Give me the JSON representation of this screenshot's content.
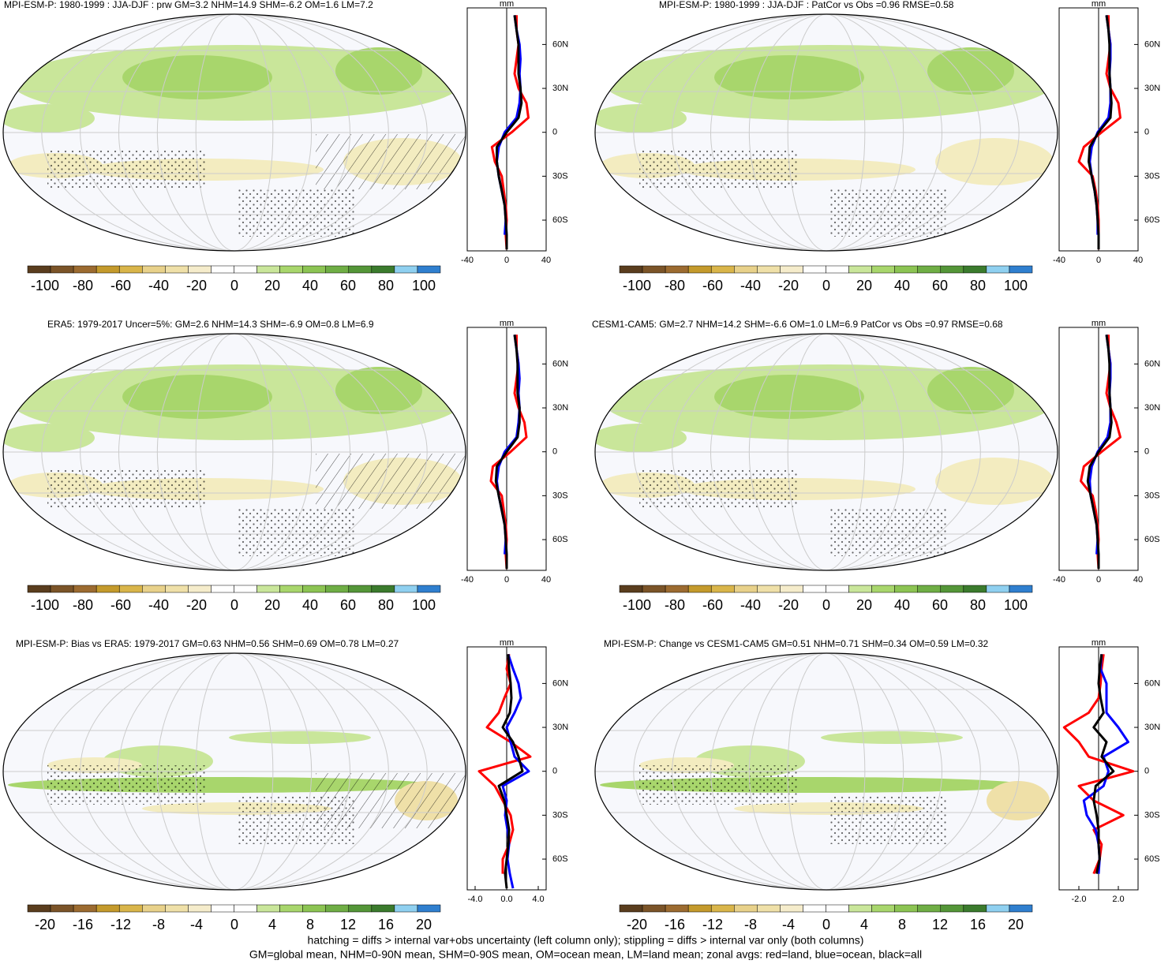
{
  "chart_data": [
    {
      "type": "line",
      "title": "MPI-ESM-P: 1980-1999 : JJA-DJF : prw GM=3.2 NHM=14.9 SHM=-6.2 OM=1.6 LM=7.2",
      "x_unit": "mm",
      "xlim": [
        -40,
        40
      ],
      "xticks": [
        -40,
        0,
        40
      ],
      "ylim": [
        -81,
        85
      ],
      "yticks": [
        {
          "value": -60,
          "label": "60S"
        },
        {
          "value": -30,
          "label": "30S"
        },
        0,
        {
          "value": 30,
          "label": "30N"
        },
        {
          "value": 60,
          "label": "60N"
        }
      ],
      "lat": [
        -80,
        -70,
        -60,
        -50,
        -40,
        -30,
        -20,
        -10,
        0,
        10,
        20,
        30,
        40,
        50,
        60,
        70,
        80
      ],
      "series": [
        {
          "name": "land",
          "color": "#ff0000",
          "values": [
            0,
            -1,
            0,
            -1,
            -3,
            -5,
            -12,
            -15,
            5,
            22,
            20,
            12,
            8,
            10,
            12,
            10,
            10
          ]
        },
        {
          "name": "ocean",
          "color": "#0000ff",
          "values": [
            null,
            -2,
            -1,
            -2,
            -5,
            -8,
            -10,
            -8,
            -2,
            10,
            13,
            14,
            13,
            14,
            13,
            10,
            8
          ]
        },
        {
          "name": "all",
          "color": "#000000",
          "values": [
            0,
            0,
            -1,
            -2,
            -5,
            -8,
            -10,
            -10,
            0,
            12,
            15,
            14,
            12,
            12,
            12,
            10,
            8
          ]
        }
      ],
      "colorbar": {
        "colors": [
          "#5a3d1e",
          "#7b5428",
          "#9c6b30",
          "#c49a2c",
          "#d9b54a",
          "#e8d18a",
          "#efe0a8",
          "#f5eccb",
          "#ffffff",
          "#ffffff",
          "#c9e69a",
          "#a8d66c",
          "#8cc453",
          "#6fae45",
          "#549638",
          "#3b7b2d",
          "#8fd0f0",
          "#2f7fcf"
        ],
        "ticks": [
          -100,
          -80,
          -60,
          -40,
          -20,
          0,
          20,
          40,
          60,
          80,
          100
        ]
      }
    },
    {
      "type": "line",
      "title": "MPI-ESM-P: 1980-1999 : JJA-DJF : PatCor vs Obs =0.96 RMSE=0.58",
      "x_unit": "mm",
      "xlim": [
        -40,
        40
      ],
      "xticks": [
        -40,
        0,
        40
      ],
      "ylim": [
        -81,
        85
      ],
      "yticks": [
        {
          "value": -60,
          "label": "60S"
        },
        {
          "value": -30,
          "label": "30S"
        },
        0,
        {
          "value": 30,
          "label": "30N"
        },
        {
          "value": 60,
          "label": "60N"
        }
      ],
      "lat": [
        -80,
        -70,
        -60,
        -50,
        -40,
        -30,
        -20,
        -10,
        0,
        10,
        20,
        30,
        40,
        50,
        60,
        70,
        80
      ],
      "series": [
        {
          "name": "land",
          "color": "#ff0000",
          "values": [
            0,
            0,
            0,
            -1,
            -3,
            -6,
            -20,
            -15,
            3,
            22,
            20,
            12,
            8,
            10,
            12,
            10,
            10
          ]
        },
        {
          "name": "ocean",
          "color": "#0000ff",
          "values": [
            null,
            -1,
            -1,
            -2,
            -4,
            -7,
            -9,
            -7,
            -1,
            10,
            12,
            12,
            11,
            12,
            12,
            10,
            8
          ]
        },
        {
          "name": "all",
          "color": "#000000",
          "values": [
            0,
            0,
            -1,
            -2,
            -4,
            -7,
            -10,
            -9,
            0,
            12,
            13,
            12,
            11,
            11,
            11,
            10,
            8
          ]
        }
      ],
      "colorbar": {
        "colors": [
          "#5a3d1e",
          "#7b5428",
          "#9c6b30",
          "#c49a2c",
          "#d9b54a",
          "#e8d18a",
          "#efe0a8",
          "#f5eccb",
          "#ffffff",
          "#ffffff",
          "#c9e69a",
          "#a8d66c",
          "#8cc453",
          "#6fae45",
          "#549638",
          "#3b7b2d",
          "#8fd0f0",
          "#2f7fcf"
        ],
        "ticks": [
          -100,
          -80,
          -60,
          -40,
          -20,
          0,
          20,
          40,
          60,
          80,
          100
        ]
      }
    },
    {
      "type": "line",
      "title": "ERA5: 1979-2017 Uncer=5%: GM=2.6 NHM=14.3 SHM=-6.9 OM=0.8 LM=6.9",
      "x_unit": "mm",
      "xlim": [
        -40,
        40
      ],
      "xticks": [
        -40,
        0,
        40
      ],
      "ylim": [
        -81,
        85
      ],
      "yticks": [
        {
          "value": -60,
          "label": "60S"
        },
        {
          "value": -30,
          "label": "30S"
        },
        0,
        {
          "value": 30,
          "label": "30N"
        },
        {
          "value": 60,
          "label": "60N"
        }
      ],
      "lat": [
        -80,
        -70,
        -60,
        -50,
        -40,
        -30,
        -20,
        -10,
        0,
        10,
        20,
        30,
        40,
        50,
        60,
        70,
        80
      ],
      "series": [
        {
          "name": "land",
          "color": "#ff0000",
          "values": [
            0,
            -1,
            0,
            -1,
            -3,
            -5,
            -16,
            -14,
            4,
            20,
            18,
            12,
            8,
            10,
            12,
            10,
            10
          ]
        },
        {
          "name": "ocean",
          "color": "#0000ff",
          "values": [
            null,
            -2,
            -1,
            -2,
            -5,
            -8,
            -10,
            -8,
            -2,
            10,
            12,
            13,
            12,
            13,
            12,
            10,
            8
          ]
        },
        {
          "name": "all",
          "color": "#000000",
          "values": [
            0,
            0,
            -1,
            -2,
            -5,
            -8,
            -11,
            -10,
            0,
            11,
            13,
            13,
            11,
            11,
            11,
            10,
            8
          ]
        }
      ],
      "colorbar": {
        "colors": [
          "#5a3d1e",
          "#7b5428",
          "#9c6b30",
          "#c49a2c",
          "#d9b54a",
          "#e8d18a",
          "#efe0a8",
          "#f5eccb",
          "#ffffff",
          "#ffffff",
          "#c9e69a",
          "#a8d66c",
          "#8cc453",
          "#6fae45",
          "#549638",
          "#3b7b2d",
          "#8fd0f0",
          "#2f7fcf"
        ],
        "ticks": [
          -100,
          -80,
          -60,
          -40,
          -20,
          0,
          20,
          40,
          60,
          80,
          100
        ]
      }
    },
    {
      "type": "line",
      "title": "CESM1-CAM5: GM=2.7 NHM=14.2 SHM=-6.6 OM=1.0 LM=6.9 PatCor vs Obs =0.97 RMSE=0.68",
      "x_unit": "mm",
      "xlim": [
        -40,
        40
      ],
      "xticks": [
        -40,
        0,
        40
      ],
      "ylim": [
        -81,
        85
      ],
      "yticks": [
        {
          "value": -60,
          "label": "60S"
        },
        {
          "value": -30,
          "label": "30S"
        },
        0,
        {
          "value": 30,
          "label": "30N"
        },
        {
          "value": 60,
          "label": "60N"
        }
      ],
      "lat": [
        -80,
        -70,
        -60,
        -50,
        -40,
        -30,
        -20,
        -10,
        0,
        10,
        20,
        30,
        40,
        50,
        60,
        70,
        80
      ],
      "series": [
        {
          "name": "land",
          "color": "#ff0000",
          "values": [
            0,
            -1,
            0,
            -1,
            -3,
            -6,
            -18,
            -15,
            3,
            22,
            18,
            12,
            8,
            10,
            12,
            10,
            10
          ]
        },
        {
          "name": "ocean",
          "color": "#0000ff",
          "values": [
            null,
            -2,
            -1,
            -2,
            -5,
            -8,
            -9,
            -7,
            -1,
            9,
            12,
            12,
            11,
            12,
            12,
            10,
            8
          ]
        },
        {
          "name": "all",
          "color": "#000000",
          "values": [
            0,
            0,
            -1,
            -2,
            -5,
            -8,
            -11,
            -9,
            0,
            11,
            13,
            12,
            11,
            11,
            11,
            10,
            8
          ]
        }
      ],
      "colorbar": {
        "colors": [
          "#5a3d1e",
          "#7b5428",
          "#9c6b30",
          "#c49a2c",
          "#d9b54a",
          "#e8d18a",
          "#efe0a8",
          "#f5eccb",
          "#ffffff",
          "#ffffff",
          "#c9e69a",
          "#a8d66c",
          "#8cc453",
          "#6fae45",
          "#549638",
          "#3b7b2d",
          "#8fd0f0",
          "#2f7fcf"
        ],
        "ticks": [
          -100,
          -80,
          -60,
          -40,
          -20,
          0,
          20,
          40,
          60,
          80,
          100
        ]
      }
    },
    {
      "type": "line",
      "title": "MPI-ESM-P: Bias vs ERA5: 1979-2017 GM=0.63 NHM=0.56 SHM=0.69 OM=0.78 LM=0.27",
      "x_unit": "mm",
      "xlim": [
        -5,
        5
      ],
      "xticks": [
        {
          "value": -4,
          "label": "-4.0"
        },
        {
          "value": 0,
          "label": "0.0"
        },
        {
          "value": 4,
          "label": "4.0"
        }
      ],
      "ylim": [
        -81,
        85
      ],
      "yticks": [
        {
          "value": -60,
          "label": "60S"
        },
        {
          "value": -30,
          "label": "30S"
        },
        0,
        {
          "value": 30,
          "label": "30N"
        },
        {
          "value": 60,
          "label": "60N"
        }
      ],
      "lat": [
        -80,
        -70,
        -60,
        -50,
        -40,
        -30,
        -20,
        -10,
        0,
        10,
        20,
        30,
        40,
        50,
        60,
        70,
        80
      ],
      "series": [
        {
          "name": "land",
          "color": "#ff0000",
          "values": [
            null,
            -0.5,
            -0.5,
            0.3,
            0.8,
            0.5,
            -0.5,
            -1.5,
            -3.5,
            3,
            0.5,
            -2.5,
            -1,
            -0.3,
            0.5,
            0,
            0.3
          ]
        },
        {
          "name": "ocean",
          "color": "#0000ff",
          "values": [
            0.8,
            0.4,
            0.1,
            0.3,
            0.1,
            -0.2,
            0,
            -0.5,
            2.8,
            1,
            0.5,
            0,
            1,
            1.8,
            1.5,
            0.8,
            0.2
          ]
        },
        {
          "name": "all",
          "color": "#000000",
          "values": [
            0,
            -0.2,
            0,
            0.2,
            0.3,
            0,
            -0.3,
            -1,
            2,
            1.5,
            0.8,
            -0.5,
            0.4,
            0.6,
            0.5,
            0.3,
            0.2
          ]
        }
      ],
      "colorbar": {
        "colors": [
          "#5a3d1e",
          "#7b5428",
          "#9c6b30",
          "#c49a2c",
          "#d9b54a",
          "#e8d18a",
          "#efe0a8",
          "#f5eccb",
          "#ffffff",
          "#ffffff",
          "#c9e69a",
          "#a8d66c",
          "#8cc453",
          "#6fae45",
          "#549638",
          "#3b7b2d",
          "#8fd0f0",
          "#2f7fcf"
        ],
        "ticks": [
          -20,
          -16,
          -12,
          -8,
          -4,
          0,
          4,
          8,
          12,
          16,
          20
        ]
      }
    },
    {
      "type": "line",
      "title": "MPI-ESM-P: Change vs CESM1-CAM5 GM=0.51 NHM=0.71 SHM=0.34 OM=0.59 LM=0.32",
      "x_unit": "mm",
      "xlim": [
        -4,
        4
      ],
      "xticks": [
        {
          "value": -2,
          "label": "-2.0"
        },
        {
          "value": 2,
          "label": "2.0"
        }
      ],
      "ylim": [
        -81,
        85
      ],
      "yticks": [
        {
          "value": -60,
          "label": "60S"
        },
        {
          "value": -30,
          "label": "30S"
        },
        0,
        {
          "value": 30,
          "label": "30N"
        },
        {
          "value": 60,
          "label": "60N"
        }
      ],
      "lat": [
        -80,
        -70,
        -60,
        -50,
        -40,
        -30,
        -20,
        -10,
        0,
        10,
        20,
        30,
        40,
        50,
        60,
        70,
        80
      ],
      "series": [
        {
          "name": "land",
          "color": "#ff0000",
          "values": [
            null,
            -0.5,
            0.1,
            0.3,
            -0.5,
            2.5,
            -0.5,
            -2,
            3.5,
            -1,
            -2,
            -3.5,
            -1,
            0,
            0.2,
            0.3,
            0.5
          ]
        },
        {
          "name": "ocean",
          "color": "#0000ff",
          "values": [
            null,
            0,
            0.1,
            0,
            -0.3,
            -1.2,
            -1.5,
            0.5,
            1,
            0.5,
            3,
            2,
            0.8,
            0.8,
            0.8,
            0.2,
            0.3
          ]
        },
        {
          "name": "all",
          "color": "#000000",
          "values": [
            null,
            -0.2,
            0.1,
            0,
            0,
            -0.2,
            -0.5,
            -0.3,
            1.5,
            0.3,
            0.8,
            -0.5,
            0.5,
            0.2,
            0,
            0.1,
            0.3
          ]
        }
      ],
      "colorbar": {
        "colors": [
          "#5a3d1e",
          "#7b5428",
          "#9c6b30",
          "#c49a2c",
          "#d9b54a",
          "#e8d18a",
          "#efe0a8",
          "#f5eccb",
          "#ffffff",
          "#ffffff",
          "#c9e69a",
          "#a8d66c",
          "#8cc453",
          "#6fae45",
          "#549638",
          "#3b7b2d",
          "#8fd0f0",
          "#2f7fcf"
        ],
        "ticks": [
          -20,
          -16,
          -12,
          -8,
          -4,
          0,
          4,
          8,
          12,
          16,
          20
        ]
      }
    }
  ],
  "footer": [
    "hatching = diffs > internal var+obs uncertainty (left column only); stippling = diffs > internal var only (both columns)",
    "GM=global mean, NHM=0-90N mean, SHM=0-90S mean, OM=ocean mean, LM=land mean; zonal avgs: red=land, blue=ocean, black=all"
  ]
}
